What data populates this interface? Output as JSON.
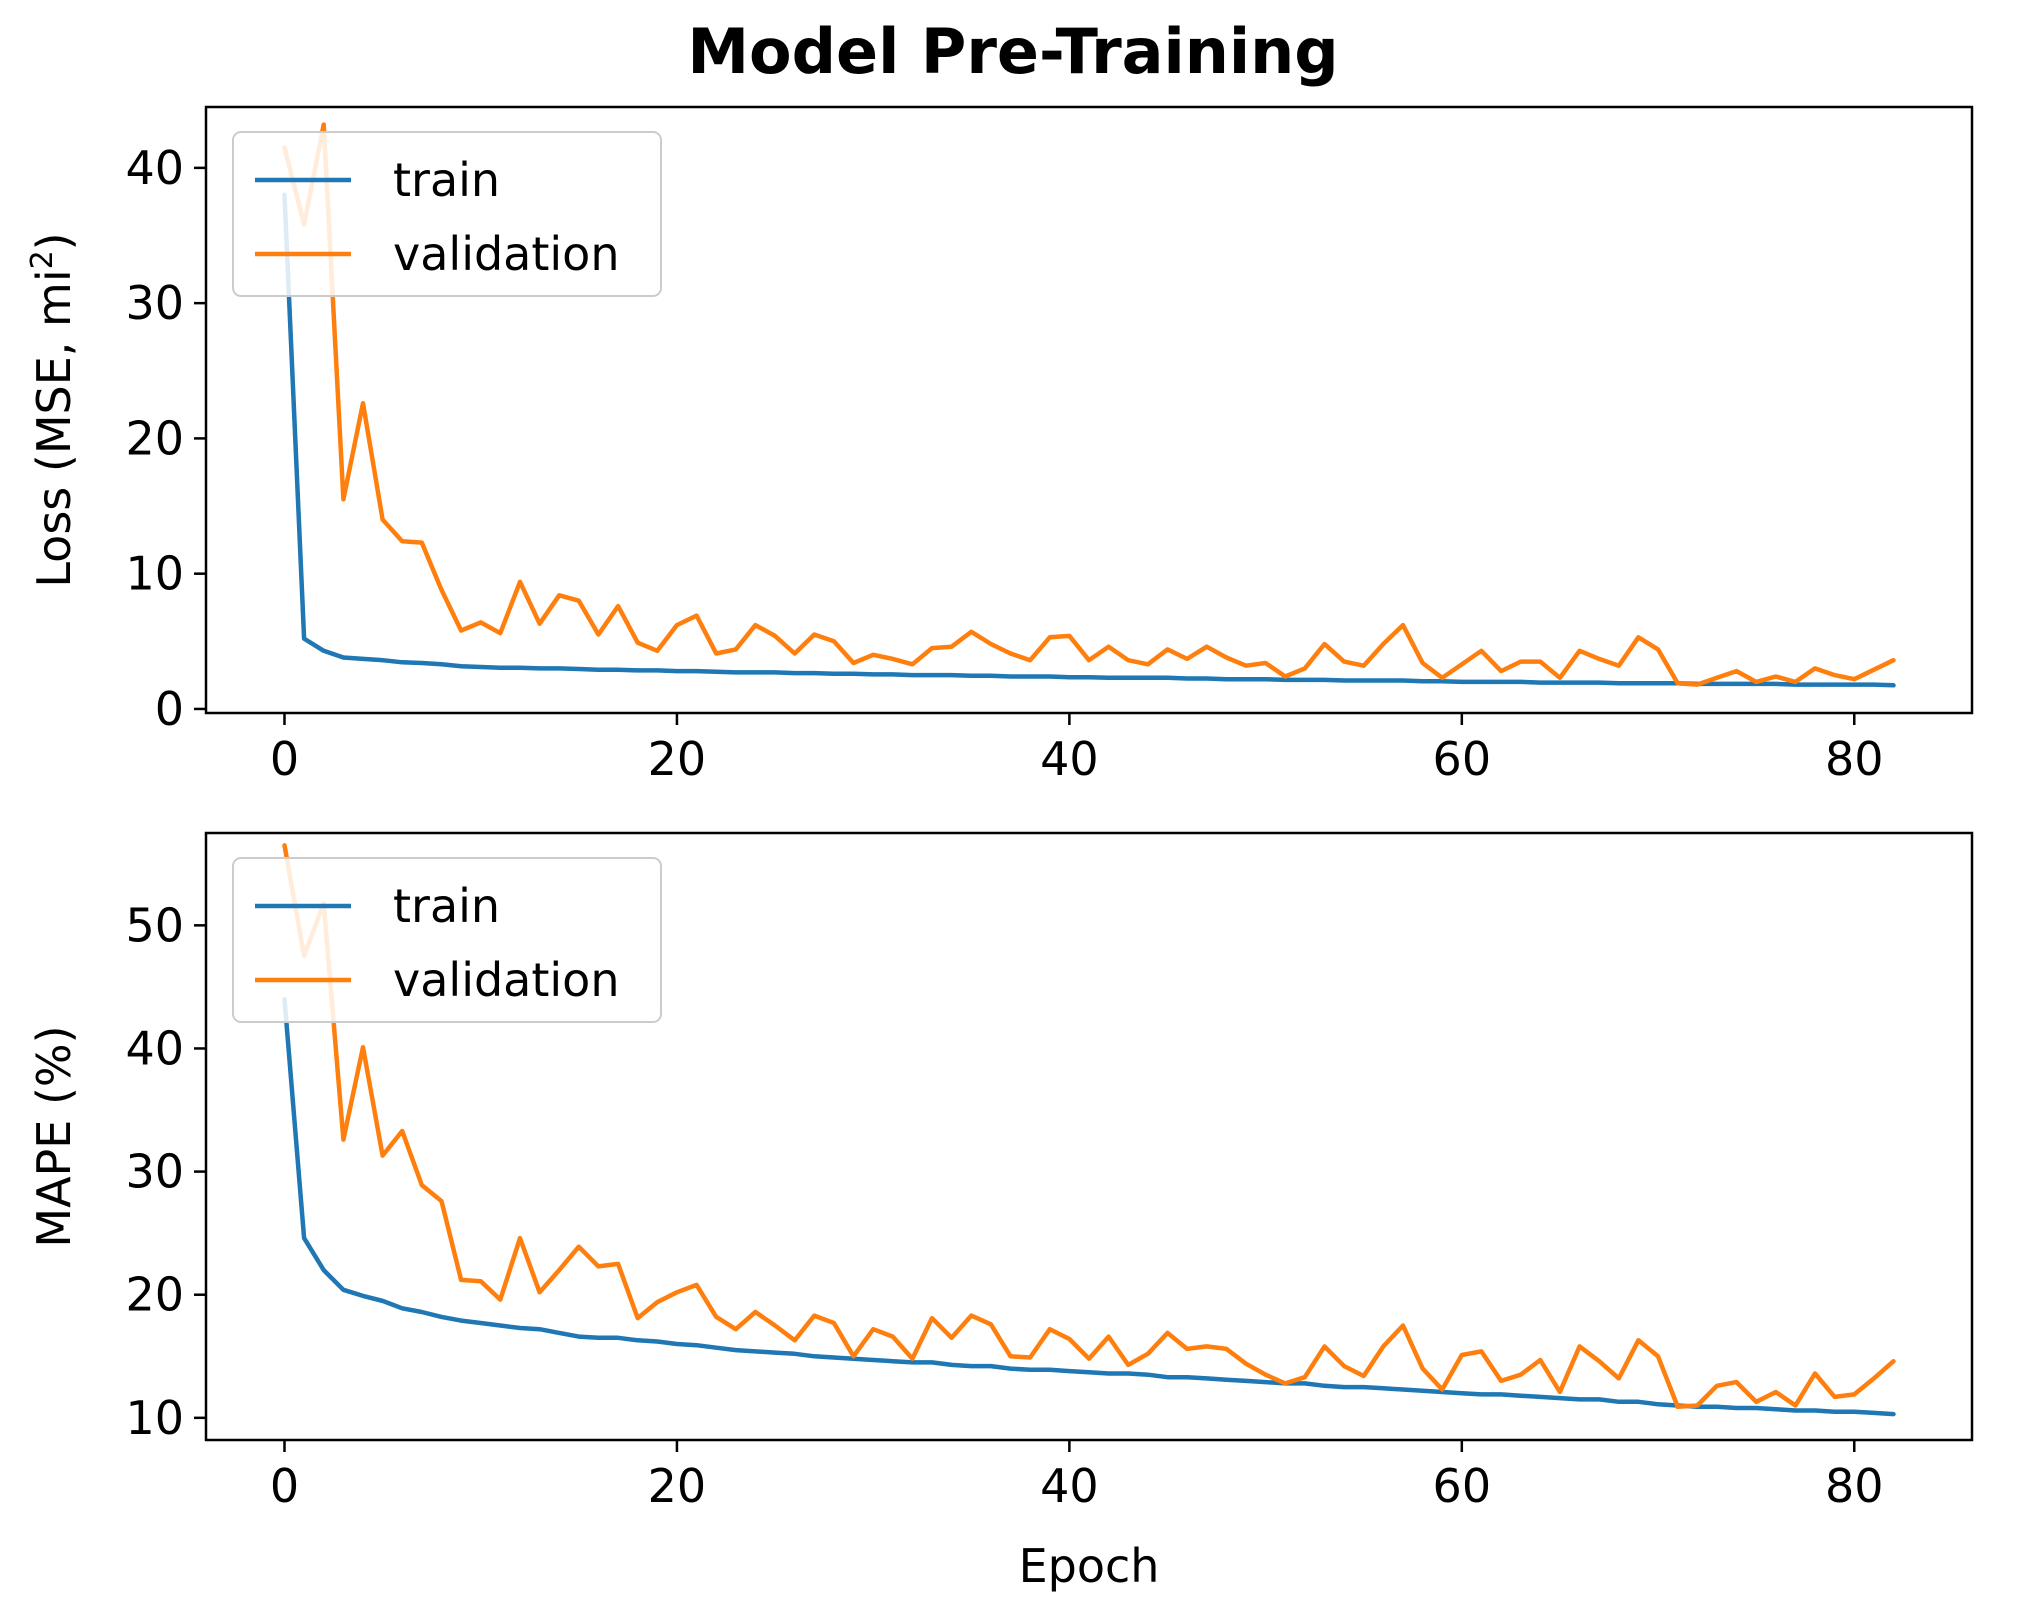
{
  "figure": {
    "title": "Model Pre-Training"
  },
  "chart_data": [
    {
      "type": "line",
      "xlabel": "",
      "ylabel": "Loss (MSE, mi",
      "ylabel_superscript": "2",
      "ylabel_suffix": ")",
      "xlim": [
        -4,
        86
      ],
      "ylim": [
        -0.3,
        44.5
      ],
      "xticks": [
        0,
        20,
        40,
        60,
        80
      ],
      "yticks": [
        0,
        10,
        20,
        30,
        40
      ],
      "legend": "top-left",
      "grid": false,
      "x": [
        0,
        1,
        2,
        3,
        4,
        5,
        6,
        7,
        8,
        9,
        10,
        11,
        12,
        13,
        14,
        15,
        16,
        17,
        18,
        19,
        20,
        21,
        22,
        23,
        24,
        25,
        26,
        27,
        28,
        29,
        30,
        31,
        32,
        33,
        34,
        35,
        36,
        37,
        38,
        39,
        40,
        41,
        42,
        43,
        44,
        45,
        46,
        47,
        48,
        49,
        50,
        51,
        52,
        53,
        54,
        55,
        56,
        57,
        58,
        59,
        60,
        61,
        62,
        63,
        64,
        65,
        66,
        67,
        68,
        69,
        70,
        71,
        72,
        73,
        74,
        75,
        76,
        77,
        78,
        79,
        80,
        81,
        82
      ],
      "series": [
        {
          "name": "train",
          "color": "#1f77b4",
          "values": [
            38.0,
            5.2,
            4.3,
            3.8,
            3.7,
            3.6,
            3.45,
            3.4,
            3.3,
            3.15,
            3.1,
            3.05,
            3.05,
            3.0,
            3.0,
            2.95,
            2.9,
            2.9,
            2.85,
            2.85,
            2.8,
            2.8,
            2.75,
            2.7,
            2.7,
            2.7,
            2.65,
            2.65,
            2.6,
            2.6,
            2.55,
            2.55,
            2.5,
            2.5,
            2.5,
            2.45,
            2.45,
            2.4,
            2.4,
            2.4,
            2.35,
            2.35,
            2.3,
            2.3,
            2.3,
            2.3,
            2.25,
            2.25,
            2.2,
            2.2,
            2.2,
            2.15,
            2.15,
            2.15,
            2.1,
            2.1,
            2.1,
            2.1,
            2.05,
            2.05,
            2.0,
            2.0,
            2.0,
            2.0,
            1.95,
            1.95,
            1.95,
            1.95,
            1.9,
            1.9,
            1.9,
            1.9,
            1.85,
            1.85,
            1.85,
            1.85,
            1.85,
            1.8,
            1.8,
            1.8,
            1.8,
            1.8,
            1.75
          ]
        },
        {
          "name": "validation",
          "color": "#ff7f0e",
          "values": [
            41.5,
            35.8,
            43.2,
            15.5,
            22.6,
            14.0,
            12.4,
            12.3,
            8.8,
            5.8,
            6.4,
            5.6,
            9.4,
            6.3,
            8.4,
            8.0,
            5.5,
            7.6,
            4.9,
            4.3,
            6.2,
            6.9,
            4.1,
            4.4,
            6.2,
            5.4,
            4.1,
            5.5,
            5.0,
            3.4,
            4.0,
            3.7,
            3.3,
            4.5,
            4.6,
            5.7,
            4.8,
            4.1,
            3.6,
            5.3,
            5.4,
            3.6,
            4.6,
            3.6,
            3.3,
            4.4,
            3.7,
            4.6,
            3.8,
            3.2,
            3.4,
            2.4,
            3.0,
            4.8,
            3.5,
            3.2,
            4.8,
            6.2,
            3.4,
            2.3,
            3.3,
            4.3,
            2.8,
            3.5,
            3.5,
            2.3,
            4.3,
            3.7,
            3.2,
            5.3,
            4.4,
            1.9,
            1.8,
            2.3,
            2.8,
            2.0,
            2.4,
            2.0,
            3.0,
            2.5,
            2.2,
            2.9,
            3.6
          ]
        }
      ]
    },
    {
      "type": "line",
      "xlabel": "Epoch",
      "ylabel": "MAPE (%)",
      "xlim": [
        -4,
        86
      ],
      "ylim": [
        8.2,
        57.5
      ],
      "xticks": [
        0,
        20,
        40,
        60,
        80
      ],
      "yticks": [
        10,
        20,
        30,
        40,
        50
      ],
      "legend": "top-left",
      "grid": false,
      "x": [
        0,
        1,
        2,
        3,
        4,
        5,
        6,
        7,
        8,
        9,
        10,
        11,
        12,
        13,
        14,
        15,
        16,
        17,
        18,
        19,
        20,
        21,
        22,
        23,
        24,
        25,
        26,
        27,
        28,
        29,
        30,
        31,
        32,
        33,
        34,
        35,
        36,
        37,
        38,
        39,
        40,
        41,
        42,
        43,
        44,
        45,
        46,
        47,
        48,
        49,
        50,
        51,
        52,
        53,
        54,
        55,
        56,
        57,
        58,
        59,
        60,
        61,
        62,
        63,
        64,
        65,
        66,
        67,
        68,
        69,
        70,
        71,
        72,
        73,
        74,
        75,
        76,
        77,
        78,
        79,
        80,
        81,
        82
      ],
      "series": [
        {
          "name": "train",
          "color": "#1f77b4",
          "values": [
            44.0,
            24.6,
            22.0,
            20.4,
            19.9,
            19.5,
            18.9,
            18.6,
            18.2,
            17.9,
            17.7,
            17.5,
            17.3,
            17.2,
            16.9,
            16.6,
            16.5,
            16.5,
            16.3,
            16.2,
            16.0,
            15.9,
            15.7,
            15.5,
            15.4,
            15.3,
            15.2,
            15.0,
            14.9,
            14.8,
            14.7,
            14.6,
            14.5,
            14.5,
            14.3,
            14.2,
            14.2,
            14.0,
            13.9,
            13.9,
            13.8,
            13.7,
            13.6,
            13.6,
            13.5,
            13.3,
            13.3,
            13.2,
            13.1,
            13.0,
            12.9,
            12.8,
            12.8,
            12.6,
            12.5,
            12.5,
            12.4,
            12.3,
            12.2,
            12.1,
            12.0,
            11.9,
            11.9,
            11.8,
            11.7,
            11.6,
            11.5,
            11.5,
            11.3,
            11.3,
            11.1,
            11.0,
            10.9,
            10.9,
            10.8,
            10.8,
            10.7,
            10.6,
            10.6,
            10.5,
            10.5,
            10.4,
            10.3
          ]
        },
        {
          "name": "validation",
          "color": "#ff7f0e",
          "values": [
            56.5,
            47.5,
            51.8,
            32.6,
            40.1,
            31.3,
            33.3,
            28.9,
            27.6,
            21.2,
            21.1,
            19.6,
            24.6,
            20.2,
            22.0,
            23.9,
            22.3,
            22.5,
            18.1,
            19.4,
            20.2,
            20.8,
            18.2,
            17.2,
            18.6,
            17.5,
            16.3,
            18.3,
            17.7,
            15.0,
            17.2,
            16.6,
            14.8,
            18.1,
            16.5,
            18.3,
            17.6,
            15.0,
            14.9,
            17.2,
            16.4,
            14.8,
            16.6,
            14.3,
            15.2,
            16.9,
            15.6,
            15.8,
            15.6,
            14.4,
            13.5,
            12.8,
            13.3,
            15.8,
            14.2,
            13.4,
            15.8,
            17.5,
            14.0,
            12.3,
            15.1,
            15.4,
            13.0,
            13.5,
            14.7,
            12.1,
            15.8,
            14.6,
            13.2,
            16.3,
            15.0,
            10.9,
            11.0,
            12.6,
            12.9,
            11.3,
            12.1,
            11.0,
            13.6,
            11.7,
            11.9,
            13.2,
            14.6
          ]
        }
      ]
    }
  ]
}
